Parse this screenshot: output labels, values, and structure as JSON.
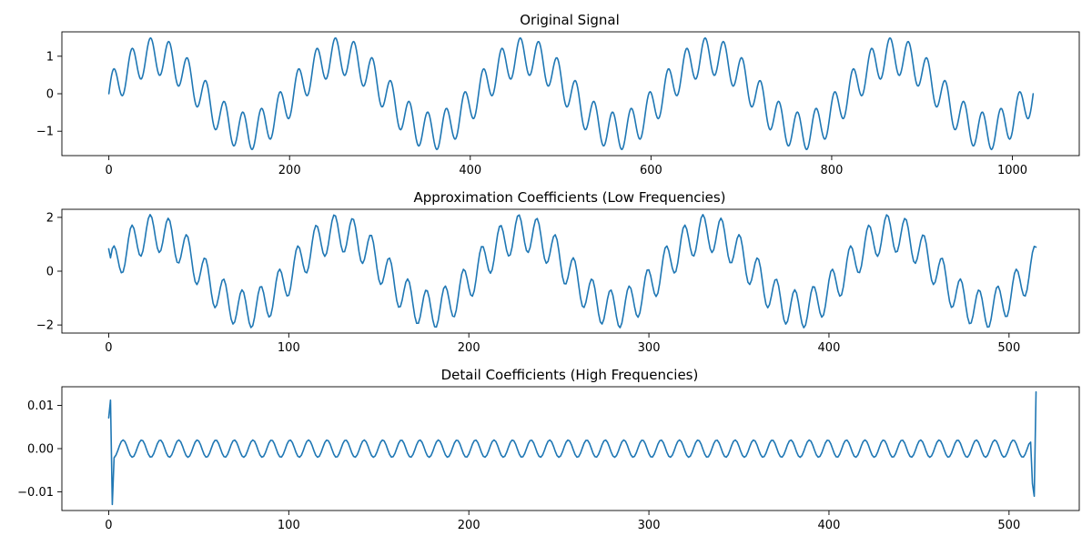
{
  "chart_data": [
    {
      "type": "line",
      "title": "Original Signal",
      "xlabel": "",
      "ylabel": "",
      "xlim": [
        -52,
        1074
      ],
      "ylim": [
        -1.65,
        1.65
      ],
      "x_ticks": [
        0,
        200,
        400,
        600,
        800,
        1000
      ],
      "x_tick_labels": [
        "0",
        "200",
        "400",
        "600",
        "800",
        "1000"
      ],
      "y_ticks": [
        -1,
        0,
        1
      ],
      "y_tick_labels": [
        "−1",
        "0",
        "1"
      ],
      "grid": false,
      "series": [
        {
          "color": "#1f77b4",
          "x_start": 0,
          "x_end": 1023,
          "point_count": 1024,
          "formula": "sin(2*pi*5*t) + 0.5*sin(2*pi*50*t), t = x/1023",
          "samples_x": [
            0,
            7,
            18,
            46,
            86,
            102,
            149,
            167,
            232,
            251,
            263,
            309,
            327,
            353,
            399,
            444,
            458,
            502,
            513,
            559,
            563,
            594,
            660,
            700,
            716,
            764,
            800,
            868,
            896,
            951,
            979,
            1023
          ],
          "samples_y": [
            0.0,
            0.65,
            -0.05,
            1.48,
            0.94,
            0.34,
            -0.52,
            -1.48,
            0.63,
            1.48,
            0.55,
            0.34,
            -0.94,
            -1.44,
            -0.03,
            1.46,
            0.67,
            0.37,
            -0.36,
            -1.47,
            -1.37,
            0.0,
            1.5,
            0.85,
            -0.85,
            -1.44,
            -0.02,
            1.5,
            0.55,
            -1.04,
            -0.1,
            0.0
          ]
        }
      ]
    },
    {
      "type": "line",
      "title": "Approximation Coefficients (Low Frequencies)",
      "xlabel": "",
      "ylabel": "",
      "xlim": [
        -26,
        539
      ],
      "ylim": [
        -2.3,
        2.3
      ],
      "x_ticks": [
        0,
        100,
        200,
        300,
        400,
        500
      ],
      "x_tick_labels": [
        "0",
        "100",
        "200",
        "300",
        "400",
        "500"
      ],
      "y_ticks": [
        -2,
        0,
        2
      ],
      "y_tick_labels": [
        "−2",
        "0",
        "2"
      ],
      "grid": false,
      "series": [
        {
          "color": "#1f77b4",
          "x_start": 0,
          "x_end": 515,
          "point_count": 516,
          "formula": "1.414*(sin(2*pi*5*t) + 0.5*sin(2*pi*50*t)), t = 2x/1023",
          "samples_x": [
            0,
            2,
            5,
            25,
            45,
            51,
            77,
            87,
            128,
            140,
            176,
            204,
            230,
            250,
            283,
            318,
            332,
            357,
            384,
            434,
            448,
            491,
            515
          ],
          "samples_y": [
            0.83,
            0.0,
            0.91,
            2.07,
            1.34,
            -0.46,
            -1.96,
            -2.07,
            2.07,
            0.77,
            -0.68,
            -0.05,
            2.07,
            1.31,
            -2.07,
            0.04,
            2.07,
            0.8,
            -1.99,
            2.07,
            1.28,
            -2.07,
            0.0
          ]
        }
      ]
    },
    {
      "type": "line",
      "title": "Detail Coefficients (High Frequencies)",
      "xlabel": "",
      "ylabel": "",
      "xlim": [
        -26,
        539
      ],
      "ylim": [
        -0.0143,
        0.0143
      ],
      "x_ticks": [
        0,
        100,
        200,
        300,
        400,
        500
      ],
      "x_tick_labels": [
        "0",
        "100",
        "200",
        "300",
        "400",
        "500"
      ],
      "y_ticks": [
        -0.01,
        0.0,
        0.01
      ],
      "y_tick_labels": [
        "−0.01",
        "0.00",
        "0.01"
      ],
      "grid": false,
      "series": [
        {
          "color": "#1f77b4",
          "x_start": 0,
          "x_end": 515,
          "point_count": 516,
          "formula": "0.002*cos(2*pi*x/10.3) interior",
          "samples_x": [
            0,
            1,
            2,
            3,
            4,
            5,
            8,
            10,
            103,
            206,
            309,
            412,
            505,
            510,
            513,
            514,
            515
          ],
          "samples_y": [
            0.0071,
            0.0112,
            -0.0129,
            -0.0021,
            -0.0019,
            0.0,
            0.002,
            0.0015,
            0.0,
            0.0,
            0.0,
            0.0,
            0.002,
            0.0015,
            -0.0081,
            -0.011,
            0.0131
          ]
        }
      ]
    }
  ]
}
